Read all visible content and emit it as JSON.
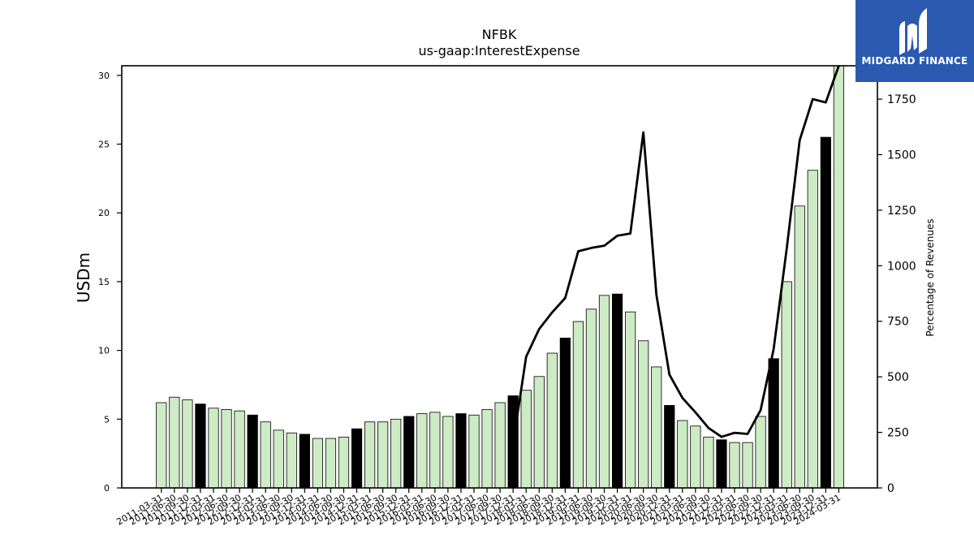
{
  "chart_data": {
    "type": "bar",
    "title": "NFBK",
    "subtitle": "us-gaap:InterestExpense",
    "ylabel": "USDm",
    "y2label": "Percentage of Revenues",
    "ylim": [
      0,
      30.7
    ],
    "y2lim": [
      0,
      1900
    ],
    "yticks": [
      0,
      5,
      10,
      15,
      20,
      25,
      30
    ],
    "y2ticks": [
      0,
      250,
      500,
      750,
      1000,
      1250,
      1500,
      1750
    ],
    "colors": {
      "quarter_bar": "#cdebc5",
      "annual_bar": "#000000",
      "line": "#000000",
      "bar_edge": "#000000"
    },
    "categories": [
      "2011-03-31",
      "2011-06-30",
      "2011-09-30",
      "2011-12-31",
      "2012-03-31",
      "2012-06-30",
      "2012-09-30",
      "2012-12-31",
      "2013-03-31",
      "2013-06-30",
      "2013-09-30",
      "2013-12-31",
      "2014-03-31",
      "2014-06-30",
      "2014-09-30",
      "2014-12-31",
      "2015-03-31",
      "2015-06-30",
      "2015-09-30",
      "2015-12-31",
      "2016-03-31",
      "2016-06-30",
      "2016-09-30",
      "2016-12-31",
      "2017-03-31",
      "2017-06-30",
      "2017-09-30",
      "2017-12-31",
      "2018-03-31",
      "2018-06-30",
      "2018-09-30",
      "2018-12-31",
      "2019-03-31",
      "2019-06-30",
      "2019-09-30",
      "2019-12-31",
      "2020-03-31",
      "2020-06-30",
      "2020-09-30",
      "2020-12-31",
      "2021-03-31",
      "2021-06-30",
      "2021-09-30",
      "2021-12-31",
      "2022-03-31",
      "2022-06-30",
      "2022-09-30",
      "2022-12-31",
      "2023-03-31",
      "2023-06-30",
      "2023-09-30",
      "2023-12-31",
      "2024-03-31"
    ],
    "series": [
      {
        "type": "bar",
        "values": [
          6.2,
          6.6,
          6.4,
          6.1,
          5.8,
          5.7,
          5.6,
          5.3,
          4.8,
          4.2,
          4.0,
          3.9,
          3.6,
          3.6,
          3.7,
          4.3,
          4.8,
          4.8,
          5.0,
          5.2,
          5.4,
          5.5,
          5.2,
          5.4,
          5.3,
          5.7,
          6.2,
          6.7,
          7.1,
          8.1,
          9.8,
          10.9,
          12.1,
          13.0,
          14.0,
          14.1,
          12.8,
          10.7,
          8.8,
          6.0,
          4.9,
          4.5,
          3.7,
          3.5,
          3.3,
          3.3,
          5.2,
          9.4,
          15.0,
          20.5,
          23.1,
          25.5,
          30.7
        ],
        "annual_flags": [
          0,
          0,
          0,
          1,
          0,
          0,
          0,
          1,
          0,
          0,
          0,
          1,
          0,
          0,
          0,
          1,
          0,
          0,
          0,
          1,
          0,
          0,
          0,
          1,
          0,
          0,
          0,
          1,
          0,
          0,
          0,
          1,
          0,
          0,
          0,
          1,
          0,
          0,
          0,
          1,
          0,
          0,
          0,
          1,
          0,
          0,
          0,
          1,
          0,
          0,
          0,
          1,
          0
        ]
      },
      {
        "type": "line",
        "axis": "right",
        "values": [
          null,
          null,
          null,
          null,
          null,
          null,
          null,
          null,
          null,
          null,
          null,
          null,
          null,
          null,
          null,
          null,
          null,
          null,
          null,
          null,
          null,
          null,
          null,
          null,
          null,
          null,
          null,
          200,
          590,
          715,
          790,
          855,
          1065,
          1080,
          1090,
          1135,
          1145,
          1600,
          870,
          510,
          405,
          340,
          270,
          230,
          248,
          243,
          350,
          625,
          1075,
          1565,
          1750,
          1735,
          1900
        ]
      }
    ]
  },
  "logo": {
    "text": "MIDGARD FINANCE",
    "icon": "midgard-logo-icon"
  }
}
